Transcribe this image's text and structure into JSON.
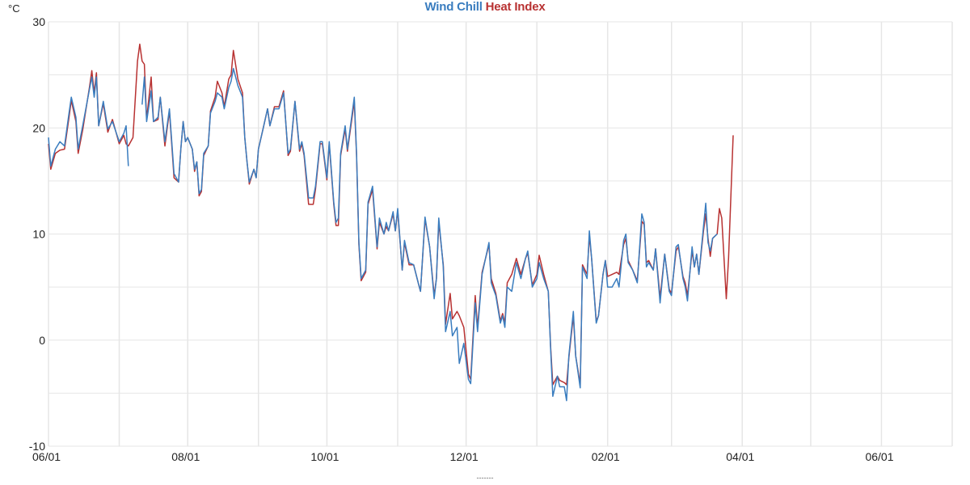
{
  "chart_data": {
    "type": "line",
    "title_parts": [
      {
        "text": "Wind Chill",
        "color": "#3a7dbf"
      },
      {
        "text": "Heat Index",
        "color": "#b83232"
      }
    ],
    "ylabel": "°C",
    "xlabel": "-------",
    "ylim": [
      -10,
      30
    ],
    "y_ticks": [
      "30",
      "20",
      "10",
      "0",
      "-10"
    ],
    "y_tick_values": [
      30,
      20,
      10,
      0,
      -10
    ],
    "y_grid_step": 5,
    "x_ticks": [
      "06/01",
      "08/01",
      "10/01",
      "12/01",
      "02/01",
      "04/01",
      "06/01"
    ],
    "x_range": [
      "06/01",
      "07/01"
    ],
    "grid": true,
    "series_columns": [
      "date",
      "Wind Chill",
      "Heat Index"
    ],
    "series": [
      {
        "name": "Wind Chill",
        "color": "#3a7dbf"
      },
      {
        "name": "Heat Index",
        "color": "#b83232"
      }
    ],
    "points": [
      [
        "06/01",
        19.1,
        18.5
      ],
      [
        "06/02",
        16.4,
        16.1
      ],
      [
        "06/04",
        18.0,
        17.6
      ],
      [
        "06/06",
        18.7,
        17.9
      ],
      [
        "06/08",
        18.3,
        18.0
      ],
      [
        "06/10",
        21.4,
        21.0
      ],
      [
        "06/11",
        22.9,
        22.6
      ],
      [
        "06/13",
        21.0,
        20.6
      ],
      [
        "06/14",
        18.0,
        17.6
      ],
      [
        "06/16",
        20.2,
        19.8
      ],
      [
        "06/19",
        23.7,
        23.9
      ],
      [
        "06/20",
        24.8,
        25.4
      ],
      [
        "06/21",
        22.9,
        23.3
      ],
      [
        "06/22",
        24.8,
        25.2
      ],
      [
        "06/23",
        20.2,
        20.2
      ],
      [
        "06/25",
        22.5,
        22.3
      ],
      [
        "06/27",
        19.9,
        19.6
      ],
      [
        "06/29",
        20.6,
        20.8
      ],
      [
        "07/01",
        18.7,
        18.5
      ],
      [
        "07/03",
        19.5,
        19.3
      ],
      [
        "07/04",
        20.2,
        18.5
      ],
      [
        "07/05",
        16.4,
        18.3
      ],
      [
        "07/07",
        null,
        19.1
      ],
      [
        "07/09",
        null,
        26.3
      ],
      [
        "07/10",
        null,
        27.9
      ],
      [
        "07/11",
        22.2,
        26.3
      ],
      [
        "07/12",
        24.8,
        26.0
      ],
      [
        "07/13",
        20.6,
        20.8
      ],
      [
        "07/15",
        23.5,
        24.8
      ],
      [
        "07/16",
        20.6,
        20.6
      ],
      [
        "07/18",
        21.0,
        20.8
      ],
      [
        "07/19",
        22.9,
        22.9
      ],
      [
        "07/21",
        18.7,
        18.3
      ],
      [
        "07/23",
        21.8,
        21.6
      ],
      [
        "07/25",
        15.7,
        15.3
      ],
      [
        "07/27",
        14.9,
        14.9
      ],
      [
        "07/28",
        18.0,
        18.0
      ],
      [
        "07/29",
        20.6,
        20.6
      ],
      [
        "07/30",
        18.7,
        18.7
      ],
      [
        "08/01",
        19.1,
        19.1
      ],
      [
        "08/03",
        18.0,
        18.0
      ],
      [
        "08/04",
        16.1,
        15.9
      ],
      [
        "08/05",
        16.8,
        16.8
      ],
      [
        "08/06",
        13.8,
        13.6
      ],
      [
        "08/07",
        14.2,
        14.0
      ],
      [
        "08/08",
        17.6,
        17.4
      ],
      [
        "08/10",
        18.3,
        18.3
      ],
      [
        "08/11",
        21.4,
        21.6
      ],
      [
        "08/13",
        22.5,
        22.9
      ],
      [
        "08/14",
        23.3,
        24.4
      ],
      [
        "08/16",
        22.9,
        23.3
      ],
      [
        "08/17",
        21.8,
        22.0
      ],
      [
        "08/19",
        23.8,
        24.6
      ],
      [
        "08/20",
        24.4,
        25.0
      ],
      [
        "08/21",
        25.6,
        27.3
      ],
      [
        "08/23",
        24.0,
        24.6
      ],
      [
        "08/25",
        22.9,
        23.3
      ],
      [
        "08/26",
        19.1,
        19.1
      ],
      [
        "08/27",
        16.8,
        16.8
      ],
      [
        "08/28",
        14.9,
        14.7
      ],
      [
        "08/30",
        16.1,
        16.1
      ],
      [
        "08/31",
        15.3,
        15.3
      ],
      [
        "09/01",
        18.0,
        18.0
      ],
      [
        "09/03",
        19.9,
        19.9
      ],
      [
        "09/05",
        21.8,
        21.8
      ],
      [
        "09/06",
        20.2,
        20.2
      ],
      [
        "09/08",
        21.8,
        22.0
      ],
      [
        "09/10",
        21.8,
        22.0
      ],
      [
        "09/12",
        23.3,
        23.5
      ],
      [
        "09/14",
        17.6,
        17.4
      ],
      [
        "09/15",
        18.0,
        17.8
      ],
      [
        "09/17",
        22.5,
        22.5
      ],
      [
        "09/19",
        18.0,
        17.8
      ],
      [
        "09/20",
        18.7,
        18.5
      ],
      [
        "09/21",
        17.6,
        17.4
      ],
      [
        "09/23",
        13.4,
        12.8
      ],
      [
        "09/25",
        13.4,
        12.8
      ],
      [
        "09/26",
        14.5,
        14.2
      ],
      [
        "09/28",
        18.7,
        18.5
      ],
      [
        "09/29",
        18.7,
        18.5
      ],
      [
        "10/01",
        15.3,
        15.1
      ],
      [
        "10/02",
        18.7,
        18.5
      ],
      [
        "10/04",
        13.0,
        12.8
      ],
      [
        "10/05",
        11.1,
        10.8
      ],
      [
        "10/06",
        11.5,
        10.8
      ],
      [
        "10/07",
        17.6,
        17.4
      ],
      [
        "10/09",
        20.2,
        19.9
      ],
      [
        "10/10",
        18.0,
        17.8
      ],
      [
        "10/13",
        22.9,
        22.5
      ],
      [
        "10/14",
        17.6,
        17.4
      ],
      [
        "10/15",
        9.2,
        9.0
      ],
      [
        "10/16",
        5.8,
        5.6
      ],
      [
        "10/18",
        6.6,
        6.4
      ],
      [
        "10/19",
        13.0,
        12.8
      ],
      [
        "10/21",
        14.5,
        14.2
      ],
      [
        "10/23",
        8.8,
        8.6
      ],
      [
        "10/24",
        11.5,
        11.1
      ],
      [
        "10/26",
        10.0,
        10.0
      ],
      [
        "10/27",
        11.1,
        10.7
      ],
      [
        "10/28",
        10.3,
        10.3
      ],
      [
        "10/30",
        12.1,
        11.9
      ],
      [
        "10/31",
        10.3,
        10.3
      ],
      [
        "11/01",
        12.4,
        12.2
      ],
      [
        "11/03",
        6.6,
        6.6
      ],
      [
        "11/04",
        9.4,
        9.2
      ],
      [
        "11/06",
        7.3,
        7.1
      ],
      [
        "11/08",
        7.1,
        7.1
      ],
      [
        "11/10",
        5.4,
        5.4
      ],
      [
        "11/11",
        4.6,
        4.6
      ],
      [
        "11/13",
        11.6,
        11.4
      ],
      [
        "11/15",
        8.8,
        8.8
      ],
      [
        "11/17",
        3.9,
        4.2
      ],
      [
        "11/18",
        5.8,
        5.8
      ],
      [
        "11/19",
        11.5,
        11.1
      ],
      [
        "11/21",
        6.9,
        7.1
      ],
      [
        "11/22",
        0.8,
        1.5
      ],
      [
        "11/24",
        2.7,
        4.4
      ],
      [
        "11/25",
        0.4,
        2.0
      ],
      [
        "11/27",
        1.2,
        2.7
      ],
      [
        "11/28",
        -2.2,
        2.3
      ],
      [
        "11/30",
        -0.3,
        1.2
      ],
      [
        "12/02",
        -3.7,
        -3.2
      ],
      [
        "12/03",
        -4.1,
        -3.7
      ],
      [
        "12/05",
        3.5,
        4.2
      ],
      [
        "12/06",
        0.8,
        1.2
      ],
      [
        "12/08",
        6.2,
        6.4
      ],
      [
        "12/11",
        9.2,
        9.0
      ],
      [
        "12/12",
        5.4,
        5.8
      ],
      [
        "12/14",
        4.2,
        4.4
      ],
      [
        "12/16",
        1.6,
        1.8
      ],
      [
        "12/17",
        2.3,
        2.5
      ],
      [
        "12/18",
        1.2,
        1.6
      ],
      [
        "12/19",
        5.0,
        5.4
      ],
      [
        "12/21",
        4.6,
        6.2
      ],
      [
        "12/23",
        7.3,
        7.7
      ],
      [
        "12/25",
        5.8,
        6.2
      ],
      [
        "12/27",
        7.7,
        7.7
      ],
      [
        "12/28",
        8.4,
        8.2
      ],
      [
        "12/30",
        5.0,
        5.2
      ],
      [
        "01/01",
        5.8,
        6.2
      ],
      [
        "01/02",
        7.3,
        8.0
      ],
      [
        "01/04",
        5.8,
        6.2
      ],
      [
        "01/06",
        4.6,
        4.6
      ],
      [
        "01/07",
        -0.7,
        -0.5
      ],
      [
        "01/08",
        -5.3,
        -4.2
      ],
      [
        "01/10",
        -3.4,
        -3.4
      ],
      [
        "01/11",
        -4.4,
        -3.8
      ],
      [
        "01/13",
        -4.4,
        -4.0
      ],
      [
        "01/14",
        -5.7,
        -4.2
      ],
      [
        "01/15",
        -1.5,
        -1.7
      ],
      [
        "01/17",
        2.7,
        2.3
      ],
      [
        "01/18",
        -1.5,
        -1.5
      ],
      [
        "01/20",
        -4.5,
        -4.2
      ],
      [
        "01/21",
        6.9,
        7.1
      ],
      [
        "01/23",
        5.8,
        6.2
      ],
      [
        "01/24",
        10.3,
        9.8
      ],
      [
        "01/25",
        7.7,
        7.7
      ],
      [
        "01/27",
        1.6,
        1.8
      ],
      [
        "01/28",
        2.3,
        2.3
      ],
      [
        "01/30",
        6.2,
        6.2
      ],
      [
        "01/31",
        7.5,
        7.5
      ],
      [
        "02/01",
        5.0,
        6.0
      ],
      [
        "02/03",
        5.0,
        6.2
      ],
      [
        "02/05",
        5.8,
        6.4
      ],
      [
        "02/06",
        5.0,
        6.2
      ],
      [
        "02/08",
        9.4,
        9.0
      ],
      [
        "02/09",
        10.0,
        9.6
      ],
      [
        "02/10",
        7.3,
        7.5
      ],
      [
        "02/12",
        6.6,
        6.6
      ],
      [
        "02/14",
        5.4,
        5.6
      ],
      [
        "02/16",
        11.9,
        11.2
      ],
      [
        "02/17",
        11.1,
        10.9
      ],
      [
        "02/18",
        6.9,
        7.3
      ],
      [
        "02/19",
        7.3,
        7.5
      ],
      [
        "02/21",
        6.6,
        6.6
      ],
      [
        "02/22",
        8.6,
        8.6
      ],
      [
        "02/24",
        3.5,
        4.0
      ],
      [
        "02/26",
        8.1,
        8.1
      ],
      [
        "02/28",
        4.6,
        4.8
      ],
      [
        "03/01",
        4.2,
        4.4
      ],
      [
        "03/03",
        8.8,
        8.4
      ],
      [
        "03/04",
        9.0,
        8.8
      ],
      [
        "03/06",
        5.8,
        6.0
      ],
      [
        "03/07",
        5.0,
        5.4
      ],
      [
        "03/08",
        3.7,
        4.2
      ],
      [
        "03/10",
        8.8,
        8.4
      ],
      [
        "03/11",
        6.9,
        6.9
      ],
      [
        "03/12",
        8.1,
        8.1
      ],
      [
        "03/13",
        6.2,
        6.2
      ],
      [
        "03/15",
        10.7,
        10.3
      ],
      [
        "03/16",
        12.9,
        11.9
      ],
      [
        "03/17",
        9.2,
        9.6
      ],
      [
        "03/18",
        8.4,
        7.9
      ],
      [
        "03/19",
        9.6,
        9.6
      ],
      [
        "03/21",
        10.0,
        10.0
      ],
      [
        "03/22",
        null,
        12.4
      ],
      [
        "03/23",
        null,
        11.5
      ],
      [
        "03/25",
        null,
        3.9
      ],
      [
        "03/26",
        null,
        7.7
      ],
      [
        "03/28",
        null,
        19.3
      ]
    ]
  }
}
